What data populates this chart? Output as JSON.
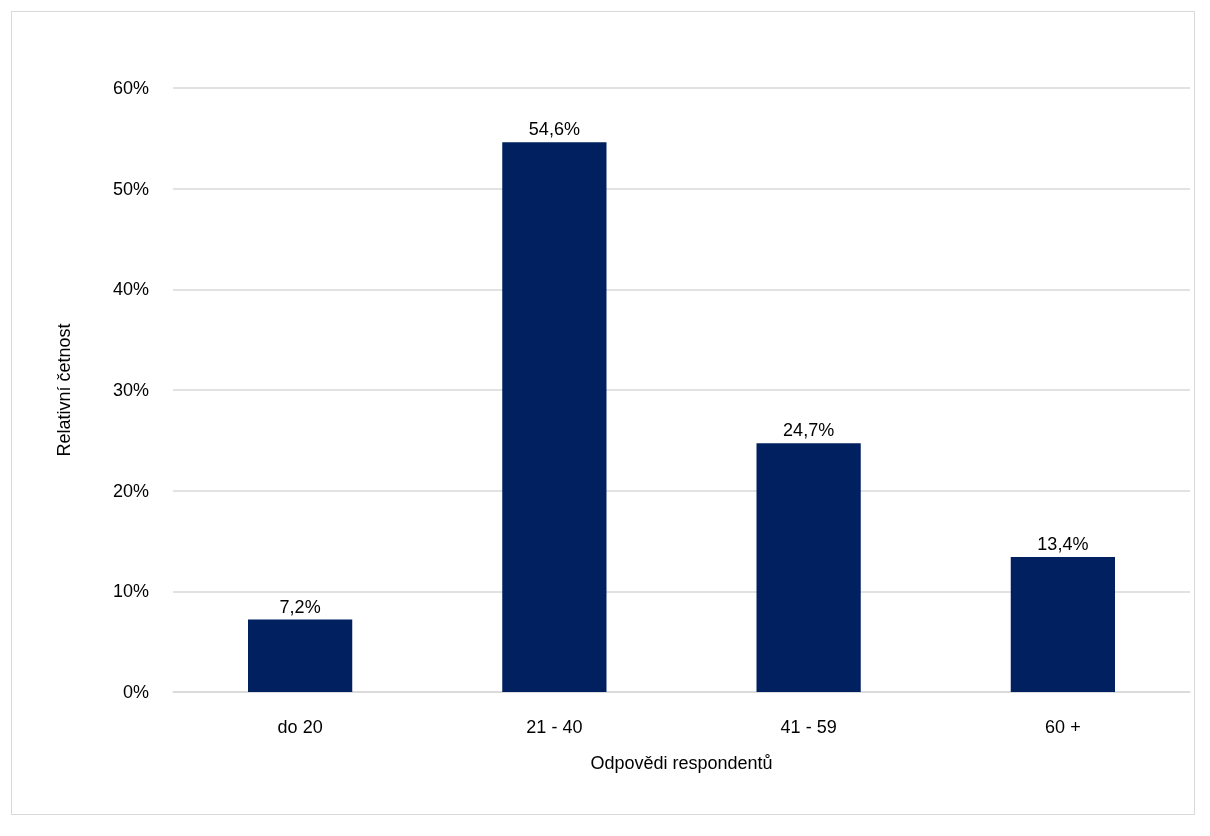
{
  "chart_data": {
    "type": "bar",
    "xlabel": "Odpovědi respondentů",
    "ylabel": "Relativní četnost",
    "categories": [
      "do 20",
      "21 - 40",
      "41 - 59",
      "60 +"
    ],
    "values": [
      7.2,
      54.6,
      24.7,
      13.4
    ],
    "color": "#002060",
    "value_labels": [
      "7,2%",
      "54,6%",
      "24,7%",
      "13,4%"
    ],
    "ylim": [
      0,
      60
    ],
    "yticks": [
      {
        "value": 0,
        "label": "0%"
      },
      {
        "value": 10,
        "label": "10%"
      },
      {
        "value": 20,
        "label": "20%"
      },
      {
        "value": 30,
        "label": "30%"
      },
      {
        "value": 40,
        "label": "40%"
      },
      {
        "value": 50,
        "label": "50%"
      },
      {
        "value": 60,
        "label": "60%"
      }
    ],
    "grid": "y"
  }
}
